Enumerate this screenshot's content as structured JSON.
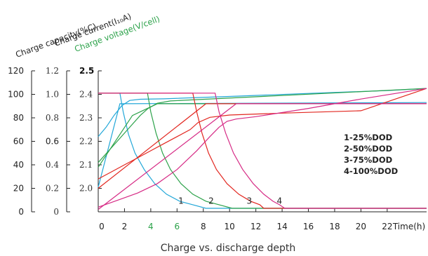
{
  "chart_data": {
    "type": "line",
    "caption": "Charge vs. discharge depth",
    "axis_titles": [
      {
        "name": "capacity",
        "text": "Charge capacity(%C)",
        "color": "#222222"
      },
      {
        "name": "current",
        "text": "Charge current(I₁₀A)",
        "color": "#222222"
      },
      {
        "name": "voltage",
        "text": "Charge voltage(V/cell)",
        "color": "#2ca24a"
      }
    ],
    "x_axis": {
      "unit_label": "Time(h)",
      "xlim": [
        0,
        25
      ],
      "ticks": [
        {
          "v": 0,
          "label": "0",
          "color": "#222222"
        },
        {
          "v": 2,
          "label": "2",
          "color": "#222222"
        },
        {
          "v": 4,
          "label": "4",
          "color": "#2ca24a"
        },
        {
          "v": 6,
          "label": "6",
          "color": "#2ca24a"
        },
        {
          "v": 8,
          "label": "8",
          "color": "#222222"
        },
        {
          "v": 10,
          "label": "10",
          "color": "#222222"
        },
        {
          "v": 12,
          "label": "12",
          "color": "#222222"
        },
        {
          "v": 14,
          "label": "14",
          "color": "#222222"
        },
        {
          "v": 16,
          "label": "16",
          "color": "#222222"
        },
        {
          "v": 18,
          "label": "18",
          "color": "#222222"
        },
        {
          "v": 20,
          "label": "20",
          "color": "#222222"
        },
        {
          "v": 22,
          "label": "22",
          "color": "#222222"
        }
      ]
    },
    "y_axes": {
      "capacity": {
        "ylim": [
          0,
          120
        ],
        "ticks": [
          "0",
          "20",
          "40",
          "60",
          "80",
          "100",
          "120"
        ]
      },
      "current": {
        "ylim": [
          0,
          1.2
        ],
        "ticks": [
          "0",
          "0.2",
          "0.4",
          "0.6",
          "0.8",
          "1.0",
          "1.2"
        ]
      },
      "voltage": {
        "ylim": [
          1.9,
          2.5
        ],
        "ticks": [
          "2.0",
          "2.1",
          "2.2",
          "2.3",
          "2.4",
          "2.5"
        ]
      }
    },
    "legend": [
      "1-25%DOD",
      "2-50%DOD",
      "3-75%DOD",
      "4-100%DOD"
    ],
    "curve_labels": [
      {
        "text": "1",
        "x": 6.3,
        "y": 7
      },
      {
        "text": "2",
        "x": 8.6,
        "y": 7
      },
      {
        "text": "3",
        "x": 11.5,
        "y": 7
      },
      {
        "text": "4",
        "x": 13.8,
        "y": 7
      }
    ],
    "series": [
      {
        "id": "1",
        "color": "#22a7d8",
        "voltage": [
          [
            0,
            2.22
          ],
          [
            0.6,
            2.26
          ],
          [
            1.2,
            2.31
          ],
          [
            1.8,
            2.352
          ],
          [
            2.4,
            2.374
          ],
          [
            3.2,
            2.379
          ],
          [
            5,
            2.381
          ],
          [
            10,
            2.391
          ],
          [
            16,
            2.404
          ],
          [
            22,
            2.416
          ],
          [
            25,
            2.425
          ]
        ],
        "current": [
          [
            0,
            1.01
          ],
          [
            1.65,
            1.01
          ],
          [
            1.9,
            0.85
          ],
          [
            2.3,
            0.66
          ],
          [
            2.8,
            0.5
          ],
          [
            3.5,
            0.36
          ],
          [
            4.3,
            0.24
          ],
          [
            5.2,
            0.15
          ],
          [
            6.2,
            0.09
          ],
          [
            7.2,
            0.06
          ],
          [
            8.2,
            0.03
          ],
          [
            8.5,
            0.03
          ],
          [
            25,
            0.03
          ]
        ],
        "capacity": [
          [
            0,
            21
          ],
          [
            1.65,
            92
          ],
          [
            25,
            93
          ]
        ]
      },
      {
        "id": "2",
        "color": "#2ca24a",
        "voltage": [
          [
            0,
            2.11
          ],
          [
            0.8,
            2.16
          ],
          [
            1.6,
            2.21
          ],
          [
            2.4,
            2.26
          ],
          [
            3.2,
            2.31
          ],
          [
            3.8,
            2.34
          ],
          [
            4.5,
            2.362
          ],
          [
            5.5,
            2.372
          ],
          [
            7,
            2.376
          ],
          [
            25,
            2.425
          ]
        ],
        "current": [
          [
            0,
            1.01
          ],
          [
            3.75,
            1.01
          ],
          [
            4.0,
            0.85
          ],
          [
            4.4,
            0.67
          ],
          [
            4.9,
            0.5
          ],
          [
            5.5,
            0.36
          ],
          [
            6.3,
            0.24
          ],
          [
            7.2,
            0.15
          ],
          [
            8.2,
            0.09
          ],
          [
            9.2,
            0.06
          ],
          [
            10.2,
            0.03
          ],
          [
            25,
            0.03
          ]
        ],
        "capacity": [
          [
            0,
            38
          ],
          [
            2.6,
            82
          ],
          [
            4.5,
            92
          ],
          [
            25,
            92
          ]
        ]
      },
      {
        "id": "3",
        "color": "#e2261f",
        "voltage": [
          [
            0,
            2.04
          ],
          [
            1,
            2.07
          ],
          [
            2,
            2.1
          ],
          [
            3,
            2.13
          ],
          [
            4,
            2.16
          ],
          [
            5,
            2.19
          ],
          [
            6,
            2.22
          ],
          [
            7,
            2.25
          ],
          [
            7.6,
            2.28
          ],
          [
            8.5,
            2.302
          ],
          [
            10,
            2.312
          ],
          [
            14,
            2.32
          ],
          [
            20,
            2.33
          ],
          [
            25,
            2.425
          ]
        ],
        "current": [
          [
            0,
            1.01
          ],
          [
            7.2,
            1.01
          ],
          [
            7.5,
            0.85
          ],
          [
            7.9,
            0.67
          ],
          [
            8.4,
            0.5
          ],
          [
            9,
            0.36
          ],
          [
            9.8,
            0.24
          ],
          [
            10.7,
            0.15
          ],
          [
            11.6,
            0.09
          ],
          [
            12.3,
            0.06
          ],
          [
            12.6,
            0.03
          ],
          [
            25,
            0.03
          ]
        ],
        "capacity": [
          [
            0,
            20
          ],
          [
            8.2,
            92
          ],
          [
            25,
            92
          ]
        ]
      },
      {
        "id": "4",
        "color": "#d62a85",
        "voltage": [
          [
            0,
            1.92
          ],
          [
            1.5,
            1.95
          ],
          [
            3,
            1.98
          ],
          [
            4.5,
            2.02
          ],
          [
            6,
            2.08
          ],
          [
            7.5,
            2.16
          ],
          [
            8.5,
            2.22
          ],
          [
            9.2,
            2.26
          ],
          [
            9.8,
            2.285
          ],
          [
            10.5,
            2.295
          ],
          [
            12,
            2.305
          ],
          [
            16,
            2.34
          ],
          [
            20,
            2.38
          ],
          [
            25,
            2.425
          ]
        ],
        "current": [
          [
            0,
            1.01
          ],
          [
            8.9,
            1.01
          ],
          [
            9.2,
            0.85
          ],
          [
            9.7,
            0.67
          ],
          [
            10.3,
            0.5
          ],
          [
            11,
            0.36
          ],
          [
            11.8,
            0.24
          ],
          [
            12.6,
            0.15
          ],
          [
            13.3,
            0.09
          ],
          [
            13.8,
            0.06
          ],
          [
            14.2,
            0.03
          ],
          [
            25,
            0.03
          ]
        ],
        "capacity": [
          [
            0,
            2
          ],
          [
            10.5,
            92
          ],
          [
            25,
            92
          ]
        ]
      }
    ]
  }
}
